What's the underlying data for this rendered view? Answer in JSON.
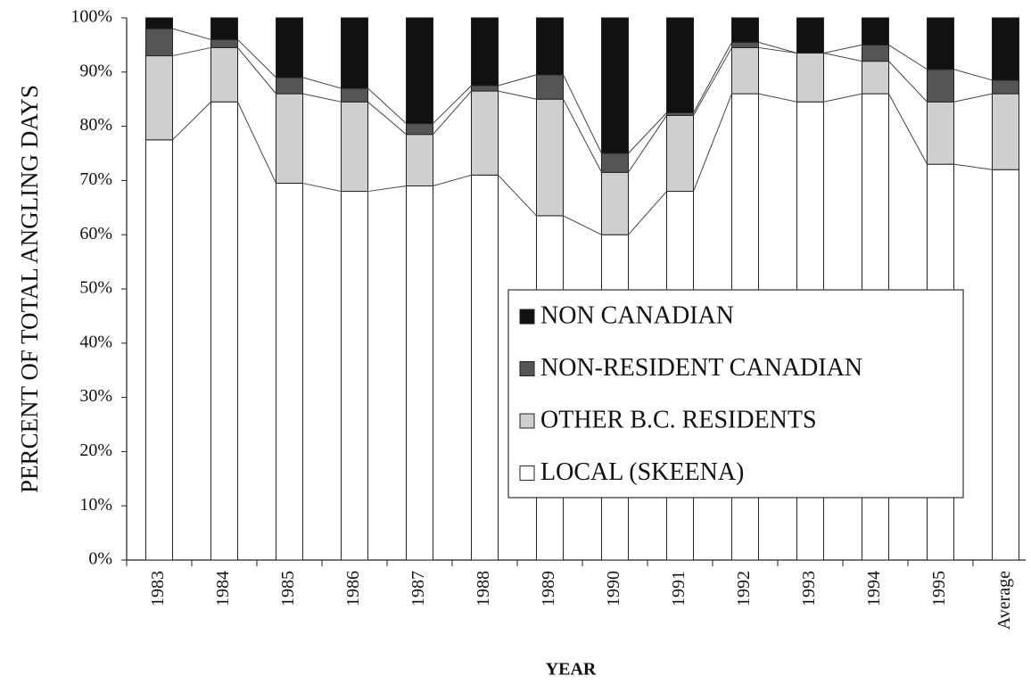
{
  "chart_data": {
    "type": "stacked_bar",
    "xlabel": "YEAR",
    "ylabel": "PERCENT OF TOTAL ANGLING DAYS",
    "categories": [
      "1983",
      "1984",
      "1985",
      "1986",
      "1987",
      "1988",
      "1989",
      "1990",
      "1991",
      "1992",
      "1993",
      "1994",
      "1995",
      "Average"
    ],
    "series": [
      {
        "name": "NON CANADIAN",
        "color": "#111111",
        "values": [
          2,
          4,
          11,
          13,
          19.5,
          12.5,
          10.5,
          25,
          17.5,
          4.5,
          6.5,
          5,
          9.5,
          11.5
        ]
      },
      {
        "name": "NON-RESIDENT CANADIAN",
        "color": "#555555",
        "values": [
          5,
          1.5,
          3,
          2.5,
          2,
          1,
          4.5,
          3.5,
          0.5,
          1,
          0,
          3,
          6,
          2.5
        ]
      },
      {
        "name": "OTHER B.C. RESIDENTS",
        "color": "#cfcfcf",
        "values": [
          15.5,
          10,
          16.5,
          16.5,
          9.5,
          15.5,
          21.5,
          11.5,
          14,
          8.5,
          9,
          6,
          11.5,
          14
        ]
      },
      {
        "name": "LOCAL (SKEENA)",
        "color": "#ffffff",
        "values": [
          77.5,
          84.5,
          69.5,
          68,
          69,
          71,
          63.5,
          60,
          68,
          86,
          84.5,
          86,
          73,
          72
        ]
      }
    ],
    "ylim": [
      0,
      100
    ],
    "yticks": [
      {
        "value": 0,
        "label": "0%"
      },
      {
        "value": 10,
        "label": "10%"
      },
      {
        "value": 20,
        "label": "20%"
      },
      {
        "value": 30,
        "label": "30%"
      },
      {
        "value": 40,
        "label": "40%"
      },
      {
        "value": 50,
        "label": "50%"
      },
      {
        "value": 60,
        "label": "60%"
      },
      {
        "value": 70,
        "label": "70%"
      },
      {
        "value": 80,
        "label": "80%"
      },
      {
        "value": 90,
        "label": "90%"
      },
      {
        "value": 100,
        "label": "100%"
      }
    ],
    "grid": false
  }
}
